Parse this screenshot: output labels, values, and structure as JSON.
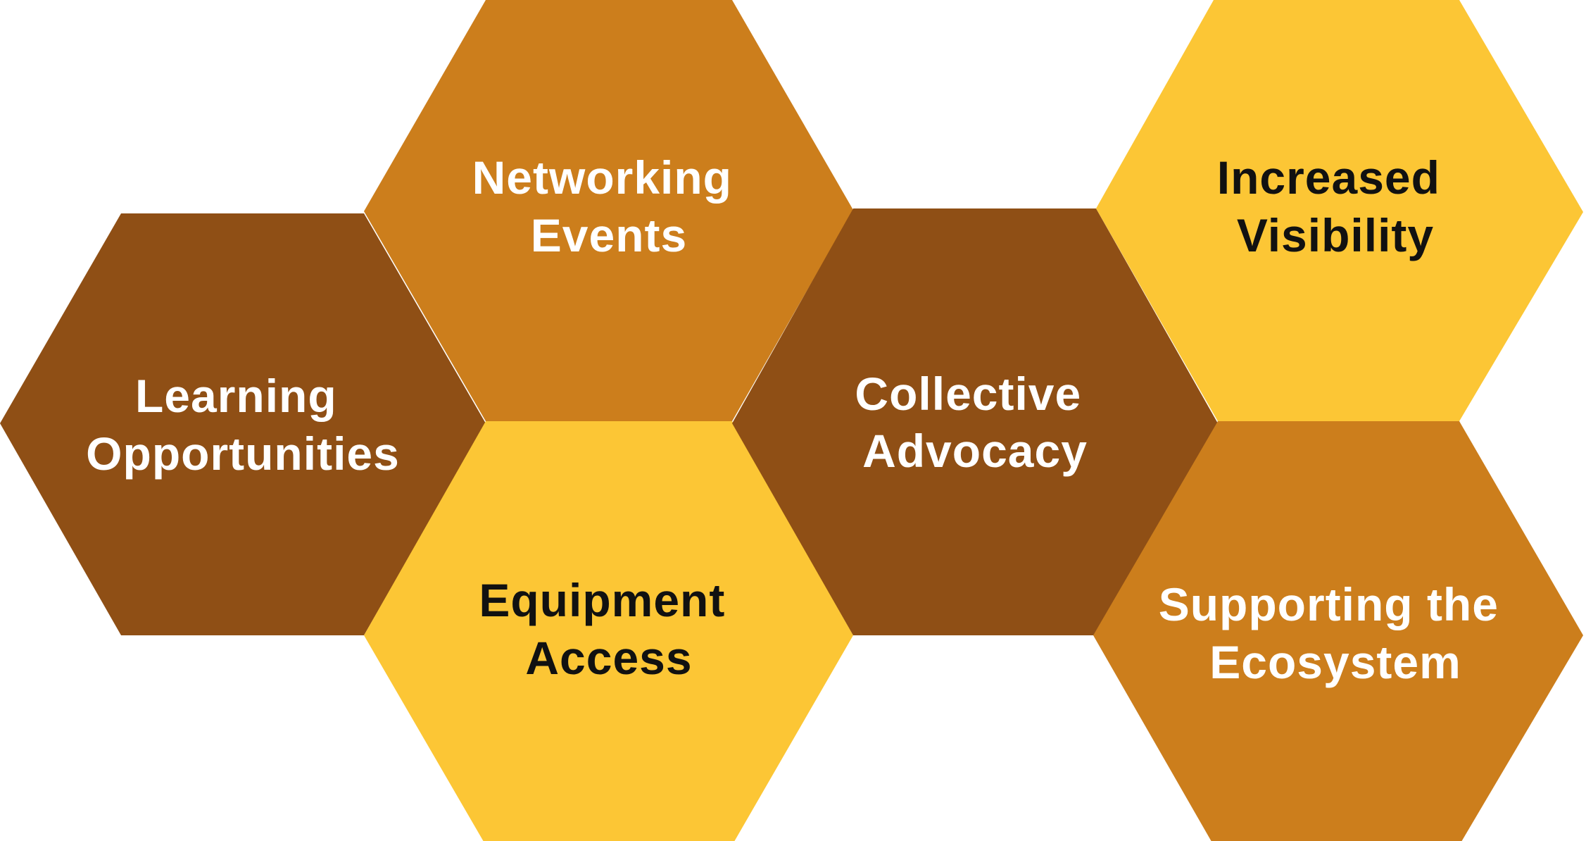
{
  "colors": {
    "dark_brown": "#8f4f15",
    "amber": "#cc7e1c",
    "yellow": "#fcc635",
    "text_light": "#ffffff",
    "text_dark": "#111111"
  },
  "hexagons": [
    {
      "id": "learning",
      "lines": [
        "Learning",
        "Opportunities"
      ],
      "fill": "dark_brown",
      "text": "text_light"
    },
    {
      "id": "networking",
      "lines": [
        "Networking",
        "Events"
      ],
      "fill": "amber",
      "text": "text_light"
    },
    {
      "id": "equipment",
      "lines": [
        "Equipment",
        "Access"
      ],
      "fill": "yellow",
      "text": "text_dark"
    },
    {
      "id": "advocacy",
      "lines": [
        "Collective",
        "Advocacy"
      ],
      "fill": "dark_brown",
      "text": "text_light"
    },
    {
      "id": "visibility",
      "lines": [
        "Increased",
        "Visibility"
      ],
      "fill": "yellow",
      "text": "text_dark"
    },
    {
      "id": "ecosystem",
      "lines": [
        "Supporting the",
        "Ecosystem"
      ],
      "fill": "amber",
      "text": "text_light"
    }
  ]
}
